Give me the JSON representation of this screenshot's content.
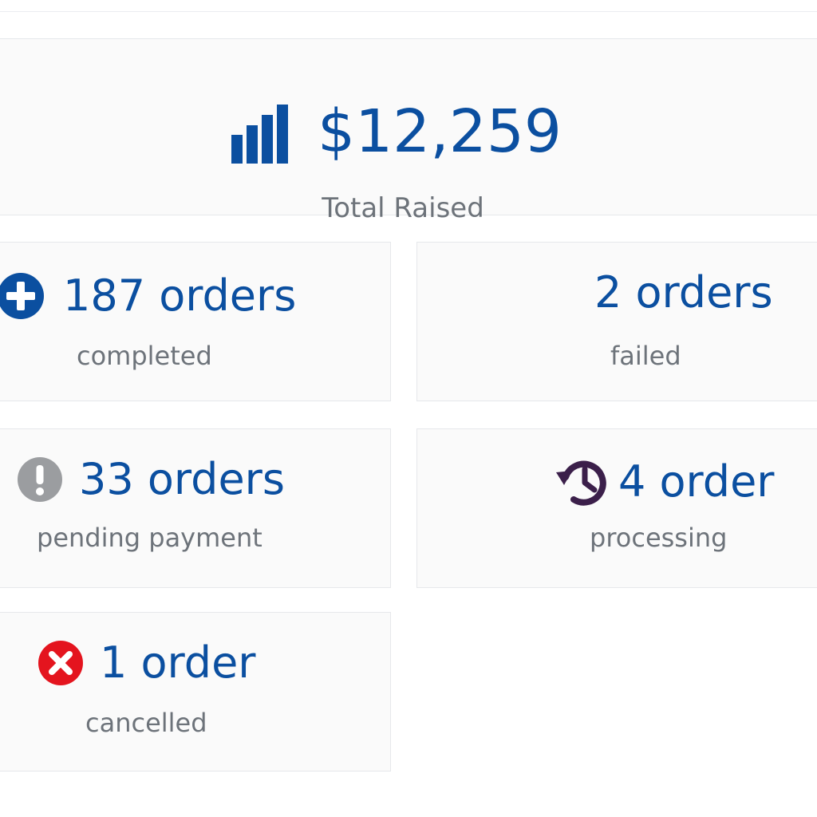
{
  "summary": {
    "total_amount": "$12,259",
    "total_label": "Total Raised",
    "icon": "bar-chart-icon",
    "accent_color": "#0b4fa0"
  },
  "stats": {
    "completed": {
      "value": "187 orders",
      "label": "completed",
      "icon": "plus-circle-icon",
      "icon_color": "#0b4fa0"
    },
    "failed": {
      "value": "2 orders",
      "label": "failed"
    },
    "pending": {
      "value": "33 orders",
      "label": "pending payment",
      "icon": "exclamation-circle-icon",
      "icon_color": "#9b9da0"
    },
    "processing": {
      "value": "4 order",
      "label": "processing",
      "icon": "history-clock-icon",
      "icon_color": "#3b1f4a"
    },
    "cancelled": {
      "value": "1 order",
      "label": "cancelled",
      "icon": "x-circle-icon",
      "icon_color": "#e4141e"
    }
  }
}
